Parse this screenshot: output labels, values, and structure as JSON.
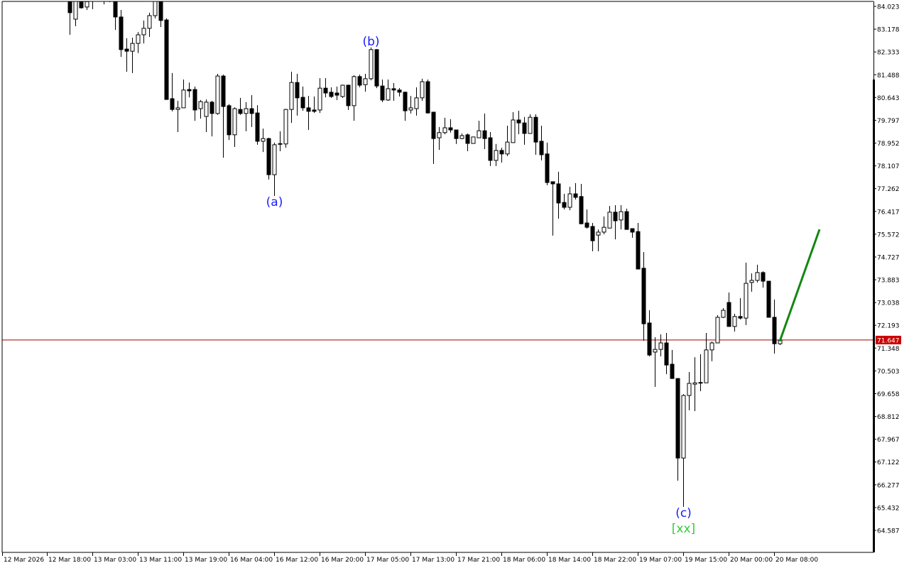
{
  "chart_data": {
    "type": "candlestick",
    "title": "",
    "colors": {
      "bull_body": "#ffffff",
      "bear_body": "#000000",
      "outline": "#000000",
      "wave_label": "#1a1aff",
      "xx_label": "#33cc33",
      "projection_line": "#118811",
      "price_line": "#a00000",
      "price_badge": "#cc0000"
    },
    "ylim": [
      64.2,
      84.26
    ],
    "y_tick_labels": [
      "84.023",
      "83.178",
      "82.333",
      "81.488",
      "80.643",
      "79.797",
      "78.952",
      "78.107",
      "77.262",
      "76.417",
      "75.572",
      "74.727",
      "73.883",
      "73.038",
      "72.193",
      "71.348",
      "70.503",
      "69.658",
      "68.812",
      "67.967",
      "67.122",
      "66.277",
      "65.432",
      "64.587"
    ],
    "x_tick_labels": [
      "12 Mar 2026",
      "12 Mar 18:00",
      "13 Mar 03:00",
      "13 Mar 11:00",
      "13 Mar 19:00",
      "16 Mar 04:00",
      "16 Mar 12:00",
      "16 Mar 20:00",
      "17 Mar 05:00",
      "17 Mar 13:00",
      "17 Mar 21:00",
      "18 Mar 06:00",
      "18 Mar 14:00",
      "18 Mar 22:00",
      "19 Mar 07:00",
      "19 Mar 15:00",
      "20 Mar 00:00",
      "20 Mar 08:00"
    ],
    "current_price": "71.647",
    "ohlc": [
      [
        84.26,
        84.3,
        82.97,
        83.79
      ],
      [
        83.55,
        84.3,
        83.29,
        84.26
      ],
      [
        84.26,
        84.3,
        83.94,
        83.97
      ],
      [
        84.0,
        84.3,
        83.89,
        84.2
      ],
      [
        84.4,
        84.6,
        83.92,
        84.45
      ],
      [
        84.5,
        84.8,
        84.35,
        84.6
      ],
      [
        84.5,
        84.7,
        84.1,
        84.4
      ],
      [
        84.4,
        84.6,
        84.18,
        84.35
      ],
      [
        84.26,
        84.3,
        83.15,
        83.63
      ],
      [
        83.63,
        83.89,
        82.15,
        82.42
      ],
      [
        82.44,
        82.84,
        81.6,
        82.36
      ],
      [
        82.36,
        82.86,
        81.55,
        82.65
      ],
      [
        82.65,
        83.07,
        82.29,
        82.97
      ],
      [
        82.97,
        83.5,
        82.65,
        83.21
      ],
      [
        83.21,
        83.79,
        82.89,
        83.68
      ],
      [
        83.68,
        84.4,
        83.58,
        84.26
      ],
      [
        84.26,
        84.3,
        83.26,
        83.5
      ],
      [
        83.52,
        83.58,
        80.57,
        80.57
      ],
      [
        80.6,
        81.55,
        80.13,
        80.2
      ],
      [
        80.2,
        80.52,
        79.36,
        80.26
      ],
      [
        80.26,
        81.31,
        80.26,
        80.92
      ],
      [
        80.94,
        81.2,
        80.65,
        80.89
      ],
      [
        80.94,
        81.05,
        79.78,
        80.18
      ],
      [
        80.23,
        80.55,
        79.86,
        80.49
      ],
      [
        79.94,
        80.57,
        79.36,
        80.47
      ],
      [
        80.47,
        80.52,
        79.2,
        80.05
      ],
      [
        80.05,
        81.52,
        80.0,
        81.44
      ],
      [
        81.44,
        81.49,
        78.41,
        80.31
      ],
      [
        80.34,
        80.4,
        79.07,
        79.26
      ],
      [
        79.26,
        80.28,
        78.81,
        80.23
      ],
      [
        80.2,
        80.63,
        80.0,
        80.05
      ],
      [
        80.05,
        80.47,
        79.39,
        80.23
      ],
      [
        80.23,
        80.73,
        79.55,
        80.05
      ],
      [
        80.07,
        80.36,
        78.89,
        79.02
      ],
      [
        79.02,
        79.49,
        78.62,
        79.12
      ],
      [
        79.12,
        79.15,
        77.6,
        77.78
      ],
      [
        77.78,
        78.97,
        76.99,
        78.89
      ],
      [
        78.92,
        79.39,
        78.65,
        78.89
      ],
      [
        78.92,
        80.22,
        78.78,
        80.2
      ],
      [
        80.2,
        81.6,
        79.7,
        81.2
      ],
      [
        81.2,
        81.52,
        79.97,
        80.63
      ],
      [
        80.65,
        81.05,
        80.15,
        80.26
      ],
      [
        80.26,
        80.7,
        79.44,
        80.13
      ],
      [
        80.18,
        80.68,
        80.07,
        80.13
      ],
      [
        80.18,
        81.36,
        80.07,
        80.99
      ],
      [
        80.99,
        81.36,
        80.65,
        80.81
      ],
      [
        80.84,
        81.02,
        80.63,
        80.68
      ],
      [
        80.81,
        81.05,
        80.55,
        80.73
      ],
      [
        80.68,
        81.12,
        80.63,
        81.1
      ],
      [
        81.1,
        81.12,
        80.18,
        80.34
      ],
      [
        80.34,
        81.47,
        79.78,
        81.42
      ],
      [
        81.42,
        81.49,
        81.02,
        81.1
      ],
      [
        81.12,
        81.52,
        80.86,
        81.34
      ],
      [
        81.34,
        82.5,
        81.28,
        82.42
      ],
      [
        82.42,
        82.44,
        80.99,
        81.07
      ],
      [
        81.07,
        81.31,
        80.47,
        80.55
      ],
      [
        80.55,
        81.31,
        80.52,
        80.97
      ],
      [
        80.97,
        81.18,
        80.52,
        80.92
      ],
      [
        80.92,
        80.99,
        80.68,
        80.84
      ],
      [
        80.84,
        80.86,
        79.78,
        80.15
      ],
      [
        80.18,
        80.7,
        80.05,
        80.26
      ],
      [
        80.23,
        81.02,
        79.97,
        80.63
      ],
      [
        80.63,
        81.34,
        80.52,
        81.23
      ],
      [
        81.23,
        81.31,
        80.05,
        80.07
      ],
      [
        80.1,
        80.1,
        78.18,
        79.12
      ],
      [
        79.15,
        79.55,
        78.7,
        79.34
      ],
      [
        79.34,
        79.89,
        79.28,
        79.52
      ],
      [
        79.52,
        79.84,
        79.34,
        79.44
      ],
      [
        79.44,
        79.44,
        78.92,
        79.12
      ],
      [
        79.12,
        79.31,
        79.1,
        79.23
      ],
      [
        79.26,
        79.31,
        78.65,
        78.94
      ],
      [
        78.94,
        79.18,
        78.94,
        79.18
      ],
      [
        79.15,
        79.78,
        79.15,
        79.41
      ],
      [
        79.41,
        80.05,
        78.73,
        79.12
      ],
      [
        79.15,
        79.36,
        78.1,
        78.31
      ],
      [
        78.31,
        78.92,
        78.1,
        78.68
      ],
      [
        78.68,
        78.78,
        78.23,
        78.55
      ],
      [
        78.55,
        79.6,
        78.47,
        78.99
      ],
      [
        78.97,
        80.1,
        78.97,
        79.81
      ],
      [
        79.81,
        80.15,
        79.28,
        79.7
      ],
      [
        79.7,
        79.92,
        78.89,
        79.31
      ],
      [
        79.31,
        80.02,
        79.31,
        79.91
      ],
      [
        79.91,
        80.02,
        78.52,
        78.99
      ],
      [
        79.02,
        79.6,
        78.31,
        78.52
      ],
      [
        78.55,
        78.97,
        77.39,
        77.49
      ],
      [
        77.52,
        77.52,
        75.52,
        77.44
      ],
      [
        77.44,
        77.89,
        76.15,
        76.73
      ],
      [
        76.75,
        77.07,
        76.49,
        76.57
      ],
      [
        76.57,
        77.33,
        76.46,
        77.07
      ],
      [
        77.07,
        77.47,
        76.86,
        76.94
      ],
      [
        76.97,
        77.44,
        75.94,
        75.96
      ],
      [
        75.99,
        76.49,
        75.78,
        75.83
      ],
      [
        75.86,
        75.99,
        74.94,
        75.33
      ],
      [
        75.54,
        75.75,
        74.94,
        75.65
      ],
      [
        75.65,
        76.23,
        75.57,
        75.83
      ],
      [
        75.8,
        76.62,
        75.8,
        76.39
      ],
      [
        76.39,
        76.65,
        75.38,
        76.07
      ],
      [
        76.1,
        76.65,
        75.75,
        76.41
      ],
      [
        76.41,
        76.52,
        75.75,
        75.75
      ],
      [
        75.78,
        75.78,
        75.44,
        75.65
      ],
      [
        75.67,
        75.99,
        74.28,
        74.28
      ],
      [
        74.31,
        74.91,
        71.62,
        72.25
      ],
      [
        72.28,
        72.75,
        71.04,
        71.09
      ],
      [
        71.2,
        71.75,
        69.91,
        71.3
      ],
      [
        71.3,
        71.86,
        71.04,
        71.54
      ],
      [
        71.54,
        71.91,
        70.38,
        70.72
      ],
      [
        70.75,
        71.28,
        70.22,
        70.22
      ],
      [
        70.22,
        70.22,
        66.43,
        67.27
      ],
      [
        67.27,
        69.64,
        65.46,
        69.59
      ],
      [
        69.59,
        70.46,
        69.04,
        70.04
      ],
      [
        70.01,
        71.01,
        69.01,
        70.06
      ],
      [
        70.06,
        71.12,
        69.75,
        70.06
      ],
      [
        70.06,
        71.91,
        70.06,
        71.28
      ],
      [
        71.28,
        71.59,
        70.86,
        71.54
      ],
      [
        71.54,
        72.57,
        71.54,
        72.49
      ],
      [
        72.49,
        72.83,
        72.46,
        72.75
      ],
      [
        73.04,
        73.41,
        72.15,
        72.15
      ],
      [
        72.15,
        72.62,
        71.96,
        72.52
      ],
      [
        72.52,
        73.2,
        72.41,
        72.46
      ],
      [
        72.46,
        74.52,
        72.2,
        73.75
      ],
      [
        73.78,
        74.12,
        73.44,
        73.86
      ],
      [
        73.86,
        74.44,
        73.78,
        74.15
      ],
      [
        74.15,
        74.2,
        73.59,
        73.83
      ],
      [
        73.83,
        73.83,
        72.49,
        72.49
      ],
      [
        72.49,
        73.15,
        71.14,
        71.51
      ],
      [
        71.51,
        71.65,
        71.46,
        71.647
      ]
    ],
    "annotations": [
      {
        "text": "(a)",
        "candle": 36,
        "price": 76.78,
        "color": "#1a1aff"
      },
      {
        "text": "(b)",
        "candle": 53,
        "price": 82.73,
        "color": "#1a1aff"
      },
      {
        "text": "(c)",
        "candle": 108,
        "price": 65.24,
        "color": "#1a1aff"
      },
      {
        "text": "[xx]",
        "candle": 108,
        "price": 64.67,
        "color": "#33cc33"
      }
    ],
    "projection": {
      "from": {
        "candle": 125,
        "price": 71.6
      },
      "to": {
        "candle": 132,
        "price": 75.75
      }
    }
  }
}
